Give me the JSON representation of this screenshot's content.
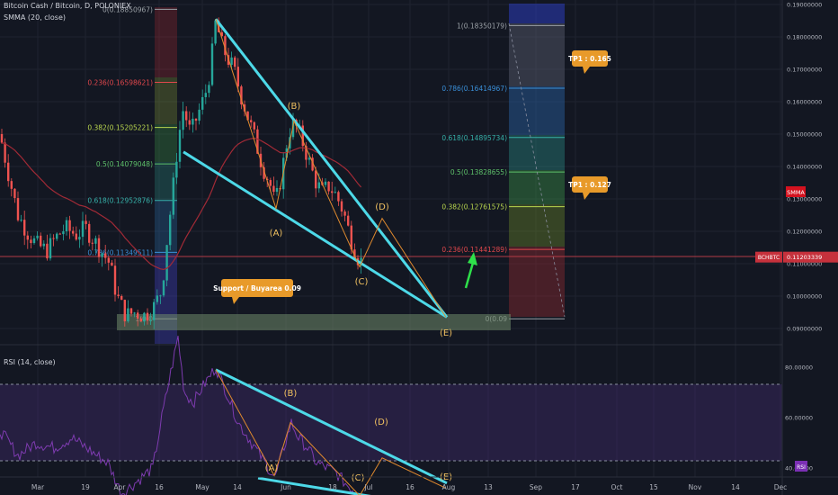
{
  "header": {
    "symbol_line": "Bitcoin Cash / Bitcoin, D, POLONIEX",
    "smma_label": "SMMA (20, close)",
    "rsi_label": "RSI (14, close)"
  },
  "chart_data": {
    "type": "candlestick",
    "price_axis": {
      "ylim": [
        0.088,
        0.1905
      ],
      "ticks": [
        "0.19000000",
        "0.18000000",
        "0.17000000",
        "0.16000000",
        "0.15000000",
        "0.14000000",
        "0.13000000",
        "0.12000000",
        "0.11000000",
        "0.10000000",
        "0.09000000"
      ],
      "current_price_label": "0.11203339",
      "current_price": 0.11203339,
      "symbol_tag": "BCHBTC",
      "smma_tag": "SMMA"
    },
    "rsi_axis": {
      "ylim": [
        24,
        94
      ],
      "ticks": [
        "80.00000",
        "60.00000",
        "40.00000"
      ],
      "bands": [
        30,
        70
      ],
      "rsi_tag": "RSI"
    },
    "x_ticks": [
      "Mar",
      "19",
      "Apr",
      "16",
      "May",
      "14",
      "Jun",
      "18",
      "Jul",
      "16",
      "Aug",
      "13",
      "Sep",
      "17",
      "Oct",
      "15",
      "Nov",
      "14",
      "Dec"
    ],
    "fib_left": {
      "levels": [
        {
          "label": "0(0.18850967)",
          "value": 0.18850967,
          "color": "#9aa0a6"
        },
        {
          "label": "0.236(0.16598621)",
          "value": 0.16598621,
          "color": "#e0474c"
        },
        {
          "label": "0.382(0.15205221)",
          "value": 0.15205221,
          "color": "#b9d64e"
        },
        {
          "label": "0.5(0.14079048)",
          "value": 0.14079048,
          "color": "#5ec06a"
        },
        {
          "label": "0.618(0.12952876)",
          "value": 0.12952876,
          "color": "#36b0a8"
        },
        {
          "label": "0.786(0.11349511)",
          "value": 0.11349511,
          "color": "#3a8fd8"
        },
        {
          "label": "1(0.0",
          "value": 0.093,
          "color": "#9aa0a6"
        }
      ]
    },
    "fib_right": {
      "levels": [
        {
          "label": "1(0.18350179)",
          "value": 0.18350179,
          "color": "#9aa0a6"
        },
        {
          "label": "0.786(0.16414967)",
          "value": 0.16414967,
          "color": "#3a8fd8"
        },
        {
          "label": "0.618(0.14895734)",
          "value": 0.14895734,
          "color": "#36b0a8"
        },
        {
          "label": "0.5(0.13828655)",
          "value": 0.13828655,
          "color": "#5ec06a"
        },
        {
          "label": "0.382(0.12761575)",
          "value": 0.12761575,
          "color": "#b9d64e"
        },
        {
          "label": "0.236(0.11441289)",
          "value": 0.11441289,
          "color": "#e0474c"
        },
        {
          "label": "0(0.09",
          "value": 0.093,
          "color": "#9aa0a6"
        }
      ]
    },
    "annotations": [
      {
        "text": "TP1 : 0.165",
        "kind": "callout"
      },
      {
        "text": "TP1 : 0.127",
        "kind": "callout"
      },
      {
        "text": "Support / Buyarea 0.09",
        "kind": "callout"
      }
    ],
    "wave_labels_price": [
      "(A)",
      "(B)",
      "(C)",
      "(D)",
      "(E)"
    ],
    "wave_labels_rsi": [
      "(A)",
      "(B)",
      "(C)",
      "(D)",
      "(E)"
    ],
    "price_wedge_upper": [
      [
        0.1855,
        "May 8"
      ],
      [
        0.0935,
        "Aug 1"
      ]
    ],
    "price_wedge_lower": [
      [
        0.1445,
        "Apr 24"
      ],
      [
        0.0935,
        "Aug 1"
      ]
    ],
    "price_waves": [
      {
        "date": "May 8",
        "value": 0.1855
      },
      {
        "date": "May 24",
        "value": 0.127
      },
      {
        "date": "May 31",
        "value": 0.154
      },
      {
        "date": "Jun 30",
        "value": 0.109
      },
      {
        "date": "Jul 9",
        "value": 0.124
      },
      {
        "date": "Jul 31",
        "value": 0.0935
      }
    ],
    "rsi_wedge_upper": [
      [
        79,
        "May 8"
      ],
      [
        34,
        "Aug 1"
      ]
    ],
    "rsi_wedge_lower": [
      [
        36,
        "May 27"
      ],
      [
        27,
        "Jul 29"
      ]
    ],
    "rsi_waves": [
      {
        "date": "May 8",
        "value": 79
      },
      {
        "date": "May 30",
        "value": 37
      },
      {
        "date": "Jun 1",
        "value": 58
      },
      {
        "date": "Jun 30",
        "value": 29
      },
      {
        "date": "Jul 9",
        "value": 44
      },
      {
        "date": "Jul 31",
        "value": 32
      }
    ]
  }
}
